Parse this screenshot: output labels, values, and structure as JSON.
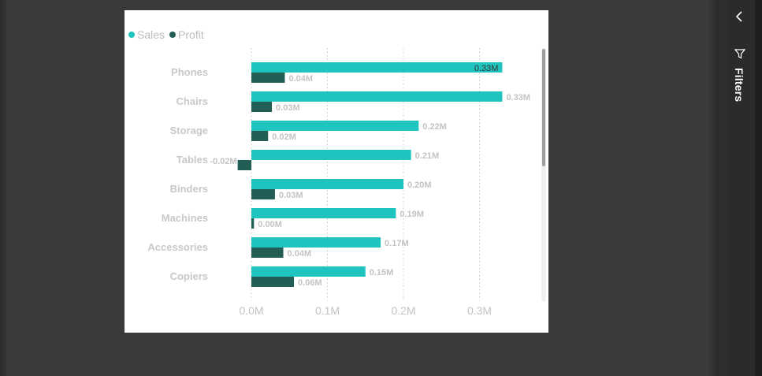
{
  "legend": {
    "items": [
      {
        "label": "Sales",
        "color": "#20c4be"
      },
      {
        "label": "Profit",
        "color": "#225e55"
      }
    ]
  },
  "pane": {
    "title": "Filters",
    "collapse_icon": "chevron-left-icon",
    "filter_icon": "funnel-icon"
  },
  "chart_data": {
    "type": "bar",
    "orientation": "horizontal",
    "categories": [
      "Phones",
      "Chairs",
      "Storage",
      "Tables",
      "Binders",
      "Machines",
      "Accessories",
      "Copiers"
    ],
    "series": [
      {
        "name": "Sales",
        "color": "#20c4be",
        "values": [
          0.33,
          0.33,
          0.22,
          0.21,
          0.2,
          0.19,
          0.17,
          0.15
        ],
        "labels": [
          "0.33M",
          "0.33M",
          "0.22M",
          "0.21M",
          "0.20M",
          "0.19M",
          "0.17M",
          "0.15M"
        ]
      },
      {
        "name": "Profit",
        "color": "#225e55",
        "values": [
          0.044,
          0.027,
          0.022,
          -0.018,
          0.031,
          0.0034,
          0.042,
          0.056
        ],
        "labels": [
          "0.04M",
          "0.03M",
          "0.02M",
          "-0.02M",
          "0.03M",
          "0.00M",
          "0.04M",
          "0.06M"
        ]
      }
    ],
    "x_ticks": [
      0,
      0.1,
      0.2,
      0.3
    ],
    "x_tick_labels": [
      "0.0M",
      "0.1M",
      "0.2M",
      "0.3M"
    ],
    "xlim": [
      -0.05,
      0.4
    ],
    "grid": "vertical-dotted",
    "legend_position": "top-left",
    "title": "",
    "xlabel": "",
    "ylabel": ""
  }
}
